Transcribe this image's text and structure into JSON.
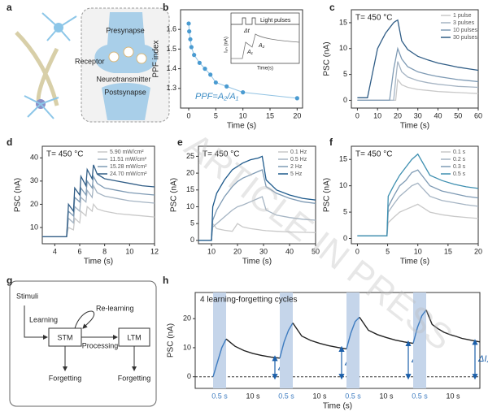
{
  "panel_labels": [
    "a",
    "b",
    "c",
    "d",
    "e",
    "f",
    "g",
    "h"
  ],
  "watermark": "ARTICLE IN PRESS",
  "synapse_diagram": {
    "labels": [
      "Presynapse",
      "Receptor",
      "Neurotransmitter",
      "Postsynapse"
    ]
  },
  "memory_diagram": {
    "stimuli": "Stimuli",
    "learning": "Learning",
    "relearning": "Re-learning",
    "stm": "STM",
    "ltm": "LTM",
    "processing": "Processing",
    "forgetting": [
      "Forgetting",
      "Forgetting"
    ]
  },
  "chart_data": [
    {
      "type": "scatter",
      "xlabel": "Time (s)",
      "ylabel": "PPF index",
      "annotation": "PPF=A₂/A₁",
      "inset": {
        "ylabel": "Iₚₕ (nA)",
        "xlabel": "Time(s)",
        "pulses": "Light pulses",
        "dt": "Δt",
        "a1": "A₁",
        "a2": "A₂"
      },
      "x": [
        0,
        0.1,
        0.3,
        0.5,
        1,
        2,
        3,
        4,
        5,
        7,
        10,
        20
      ],
      "series": [
        {
          "color": "#4a9bd1",
          "values": [
            1.63,
            1.59,
            1.55,
            1.51,
            1.47,
            1.43,
            1.4,
            1.37,
            1.33,
            1.31,
            1.28,
            1.25
          ]
        }
      ],
      "xlim": [
        -1.5,
        21
      ],
      "xticks": [
        0,
        5,
        10,
        15,
        20
      ],
      "ylim": [
        1.2,
        1.7
      ],
      "yticks": [
        1.3,
        1.4,
        1.5,
        1.6
      ]
    },
    {
      "type": "line",
      "xlabel": "Time (s)",
      "ylabel": "PSC (nA)",
      "annotation": "T= 450 °C",
      "legend": "upper right",
      "x": [
        0,
        5,
        10,
        12,
        14,
        16,
        18,
        19,
        20,
        22,
        25,
        30,
        35,
        40,
        45,
        50,
        55,
        60
      ],
      "series": [
        {
          "name": "1 pulse",
          "color": "#c9c9c9",
          "values": [
            0,
            0,
            0,
            0,
            0,
            0,
            0,
            0,
            4,
            3,
            2.5,
            2.1,
            1.9,
            1.7,
            1.6,
            1.5,
            1.4,
            1.3
          ]
        },
        {
          "name": "3 pulses",
          "color": "#a5b4c3",
          "values": [
            0,
            0,
            0,
            0,
            0,
            0,
            0,
            4,
            7.5,
            5.5,
            4.5,
            3.8,
            3.4,
            3.1,
            2.9,
            2.7,
            2.6,
            2.5
          ]
        },
        {
          "name": "10 pulses",
          "color": "#7e9ab4",
          "values": [
            0,
            0,
            0,
            0,
            0,
            0,
            6,
            8,
            10,
            8,
            6.5,
            5.5,
            5,
            4.6,
            4.3,
            4,
            3.8,
            3.6
          ]
        },
        {
          "name": "30 pulses",
          "color": "#305d86",
          "values": [
            0.5,
            0.5,
            10,
            11.5,
            13,
            14,
            15,
            15.3,
            15.5,
            11.5,
            9.8,
            8.5,
            7.8,
            7.2,
            6.8,
            6.4,
            6.1,
            5.8
          ]
        }
      ],
      "xlim": [
        -3,
        60
      ],
      "xticks": [
        0,
        10,
        20,
        30,
        40,
        50,
        60
      ],
      "ylim": [
        -1.5,
        17.5
      ],
      "yticks": [
        0,
        5,
        10,
        15
      ]
    },
    {
      "type": "line",
      "xlabel": "Time (s)",
      "ylabel": "PSC (nA)",
      "annotation": "T= 450 °C",
      "legend": "upper right",
      "x": [
        3,
        4.95,
        5.1,
        5.5,
        5.6,
        6,
        6.1,
        6.5,
        6.6,
        7,
        7.1,
        7.4,
        8,
        9,
        10,
        11,
        12
      ],
      "series": [
        {
          "name": "5.90 mW/cm²",
          "color": "#c9c9c9",
          "values": [
            6,
            6,
            10,
            9,
            14,
            12,
            17,
            15,
            19,
            17,
            20,
            18,
            17,
            16,
            15.5,
            15,
            14.5
          ]
        },
        {
          "name": "11.51 mW/cm²",
          "color": "#a5b4c3",
          "values": [
            6,
            6,
            14,
            12,
            19,
            17,
            23,
            21,
            26,
            23,
            28,
            25,
            23.5,
            22.5,
            21.5,
            21,
            20.5
          ]
        },
        {
          "name": "15.28 mW/cm²",
          "color": "#7e9ab4",
          "values": [
            6,
            6,
            17,
            15,
            23,
            21,
            27,
            24,
            30,
            27,
            32,
            29,
            27,
            26,
            25,
            24.5,
            24
          ]
        },
        {
          "name": "24.70 mW/cm²",
          "color": "#305d86",
          "values": [
            6,
            6,
            20,
            17,
            27,
            24,
            32,
            28,
            35,
            31,
            37,
            33,
            31,
            30,
            29,
            28,
            27.5
          ]
        }
      ],
      "xlim": [
        3,
        12
      ],
      "xticks": [
        4,
        6,
        8,
        10,
        12
      ],
      "ylim": [
        3,
        45
      ],
      "yticks": [
        10,
        20,
        30,
        40
      ]
    },
    {
      "type": "line",
      "xlabel": "Time (s)",
      "ylabel": "PSC (nA)",
      "annotation": "T= 450 °C",
      "legend": "upper right",
      "x": [
        5,
        10,
        10.5,
        12,
        15,
        18,
        20,
        22,
        25,
        28,
        29.5,
        31,
        35,
        40,
        45,
        50
      ],
      "series": [
        {
          "name": "0.1 Hz",
          "color": "#c9c9c9",
          "values": [
            0,
            0,
            5,
            3.5,
            3,
            2.7,
            5,
            4,
            3.5,
            3.2,
            3,
            2.9,
            2.7,
            2.5,
            2.4,
            2.3
          ]
        },
        {
          "name": "0.5 Hz",
          "color": "#a5b4c3",
          "values": [
            0,
            0,
            4,
            5,
            7,
            9,
            10,
            10.5,
            11.5,
            12.5,
            13,
            9,
            7.5,
            6.8,
            6.3,
            6
          ]
        },
        {
          "name": "2 Hz",
          "color": "#7e9ab4",
          "values": [
            0,
            0,
            6,
            9,
            13,
            16,
            17.5,
            18.5,
            19.5,
            20.5,
            21,
            16,
            14,
            12.5,
            11.5,
            11
          ]
        },
        {
          "name": "5 Hz",
          "color": "#1e5a8c",
          "values": [
            0,
            0,
            10,
            14,
            18,
            21,
            22,
            23,
            24,
            24.5,
            25,
            18,
            15,
            13.5,
            12.5,
            12
          ]
        }
      ],
      "xlim": [
        5,
        50
      ],
      "xticks": [
        10,
        20,
        30,
        40,
        50
      ],
      "ylim": [
        -1,
        28
      ],
      "yticks": [
        0,
        5,
        10,
        15,
        20,
        25
      ]
    },
    {
      "type": "line",
      "xlabel": "Time (s)",
      "ylabel": "PSC (nA)",
      "annotation": "T= 450 °C",
      "legend": "upper right",
      "x": [
        0,
        4.9,
        5.1,
        6,
        7,
        8,
        9,
        10,
        12,
        14,
        16,
        18,
        20
      ],
      "series": [
        {
          "name": "0.1 s",
          "color": "#c9c9c9",
          "values": [
            0.5,
            0.5,
            3,
            4,
            5,
            5.5,
            6,
            6.5,
            5,
            4.5,
            4.2,
            4,
            3.8
          ]
        },
        {
          "name": "0.2 s",
          "color": "#a5b4c3",
          "values": [
            0.5,
            0.5,
            5,
            6.5,
            8,
            9,
            10,
            10.5,
            8,
            7.2,
            6.8,
            6.4,
            6.1
          ]
        },
        {
          "name": "0.3 s",
          "color": "#7e9ab4",
          "values": [
            0.5,
            0.5,
            6,
            8,
            10,
            11,
            12.5,
            13,
            10,
            9,
            8.5,
            8,
            7.7
          ]
        },
        {
          "name": "0.5 s",
          "color": "#3e8fb0",
          "values": [
            0.5,
            0.5,
            8,
            10,
            12,
            13.5,
            15,
            16,
            12,
            11,
            10.3,
            9.8,
            9.5
          ]
        }
      ],
      "xlim": [
        -1,
        20
      ],
      "xticks": [
        0,
        5,
        10,
        15,
        20
      ],
      "ylim": [
        -1,
        17.5
      ],
      "yticks": [
        0,
        5,
        10,
        15
      ]
    },
    {
      "type": "segments",
      "xlabel": "Time (s)",
      "ylabel": "PSC (nA)",
      "annotation": "4 learning-forgetting cycles",
      "color": "#222222",
      "learn_color": "#3e7cc0",
      "shade": "#c5d5ea",
      "delta_color": "#1b5faa",
      "ylim": [
        -4,
        29
      ],
      "yticks": [
        0,
        10,
        20
      ],
      "segments": [
        {
          "label": "0.5 s",
          "learning": true,
          "values": [
            0,
            5,
            10,
            13
          ]
        },
        {
          "label": "10 s",
          "learning": false,
          "values": [
            13,
            10.5,
            9,
            8,
            7.3,
            6.8,
            6.4
          ],
          "delta": {
            "main": "ΔI",
            "sub": "1"
          }
        },
        {
          "label": "0.5 s",
          "learning": true,
          "values": [
            6.4,
            12,
            16,
            18.5
          ]
        },
        {
          "label": "10 s",
          "learning": false,
          "values": [
            18.5,
            14,
            12.5,
            11.5,
            10.7,
            10.1,
            9.6
          ],
          "delta": {
            "main": "ΔI",
            "sub": "2"
          }
        },
        {
          "label": "0.5 s",
          "learning": true,
          "values": [
            9.6,
            15,
            19,
            20.5
          ]
        },
        {
          "label": "10 s",
          "learning": false,
          "values": [
            20.5,
            16,
            14.5,
            13.5,
            12.6,
            12,
            11.5
          ],
          "delta": {
            "main": "ΔI",
            "sub": "3"
          }
        },
        {
          "label": "0.5 s",
          "learning": true,
          "values": [
            11.5,
            17,
            21,
            23
          ]
        },
        {
          "label": "10 s",
          "learning": false,
          "values": [
            23,
            18,
            16.5,
            15.3,
            14.5,
            13.9,
            13.2,
            12.8,
            12.4,
            12
          ],
          "delta": {
            "main": "ΔI",
            "sub": "4"
          }
        }
      ]
    }
  ]
}
